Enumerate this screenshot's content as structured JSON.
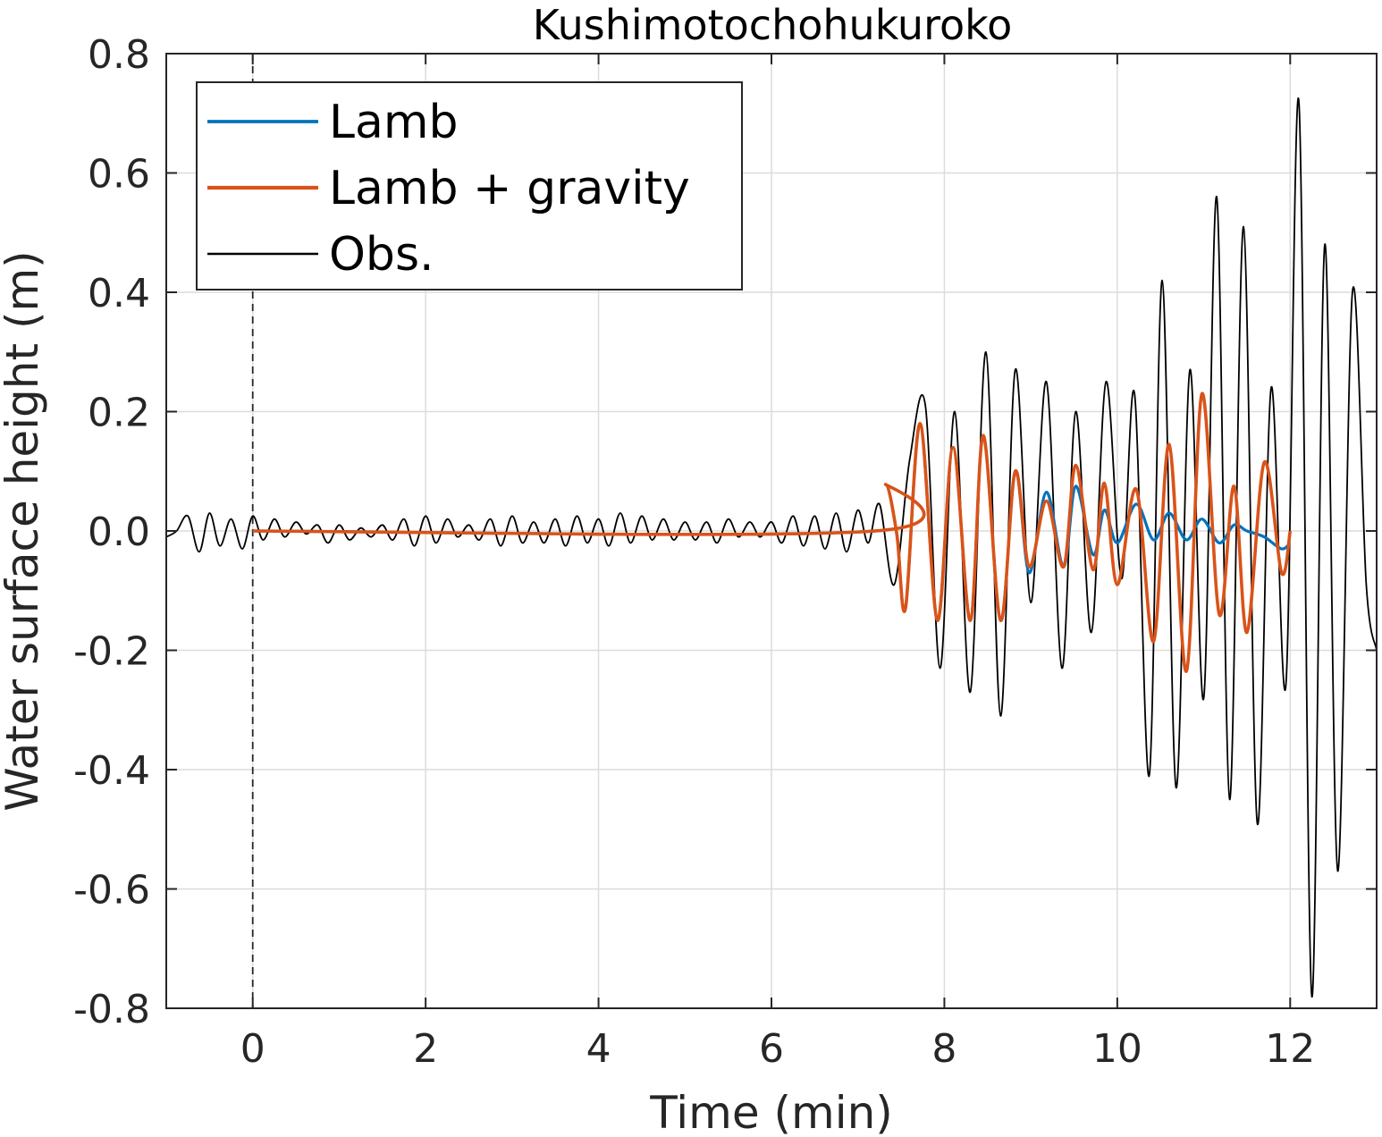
{
  "chart_data": {
    "type": "line",
    "title": "Kushimotochohukuroko",
    "xlabel": "Time (min)",
    "ylabel": "Water surface height (m)",
    "xlim": [
      -1,
      13
    ],
    "ylim": [
      -0.8,
      0.8
    ],
    "xticks": [
      0,
      2,
      4,
      6,
      8,
      10,
      12
    ],
    "xtick_labels": [
      "0",
      "2",
      "4",
      "6",
      "8",
      "10",
      "12"
    ],
    "yticks": [
      -0.8,
      -0.6,
      -0.4,
      -0.2,
      0.0,
      0.2,
      0.4,
      0.6,
      0.8
    ],
    "ytick_labels": [
      "-0.8",
      "-0.6",
      "-0.4",
      "-0.2",
      "0.0",
      "0.2",
      "0.4",
      "0.6",
      "0.8"
    ],
    "grid": true,
    "legend_position": "top-left",
    "vertical_reference_line": {
      "x": 0,
      "style": "dashed"
    },
    "series": [
      {
        "name": "Lamb",
        "color": "#0072BD",
        "x": [
          0,
          7.2,
          7.32,
          7.45,
          7.55,
          7.72,
          7.92,
          8.1,
          8.3,
          8.45,
          8.65,
          8.82,
          8.98,
          9.18,
          9.38,
          9.52,
          9.72,
          9.85,
          10.0,
          10.22,
          10.42,
          10.6,
          10.8,
          10.98,
          11.18,
          11.35,
          11.5,
          11.7,
          11.9,
          12.0
        ],
        "y": [
          0,
          0,
          0.078,
          -0.005,
          -0.13,
          0.18,
          -0.15,
          0.14,
          -0.15,
          0.16,
          -0.15,
          0.1,
          -0.07,
          0.065,
          -0.06,
          0.075,
          -0.04,
          0.035,
          -0.02,
          0.045,
          -0.015,
          0.03,
          -0.015,
          0.02,
          -0.02,
          0.01,
          0.0,
          -0.01,
          -0.03,
          -0.02
        ]
      },
      {
        "name": "Lamb + gravity",
        "color": "#D95319",
        "x": [
          0,
          7.2,
          7.32,
          7.45,
          7.55,
          7.72,
          7.92,
          8.1,
          8.3,
          8.45,
          8.65,
          8.82,
          8.98,
          9.18,
          9.38,
          9.52,
          9.72,
          9.85,
          10.0,
          10.22,
          10.42,
          10.6,
          10.8,
          10.98,
          11.18,
          11.35,
          11.5,
          11.7,
          11.9,
          12.0
        ],
        "y": [
          0,
          0,
          0.078,
          -0.005,
          -0.13,
          0.18,
          -0.15,
          0.14,
          -0.15,
          0.16,
          -0.15,
          0.1,
          -0.06,
          0.05,
          -0.06,
          0.11,
          -0.065,
          0.08,
          -0.09,
          0.07,
          -0.185,
          0.145,
          -0.235,
          0.23,
          -0.14,
          0.075,
          -0.17,
          0.115,
          -0.07,
          0.0
        ]
      },
      {
        "name": "Obs.",
        "color": "#000000",
        "x": [
          -1,
          -0.88,
          -0.75,
          -0.62,
          -0.5,
          -0.38,
          -0.25,
          -0.12,
          0.0,
          0.12,
          0.25,
          0.37,
          0.5,
          0.62,
          0.75,
          0.87,
          1.0,
          1.12,
          1.25,
          1.37,
          1.5,
          1.62,
          1.75,
          1.87,
          2.0,
          2.12,
          2.25,
          2.37,
          2.5,
          2.62,
          2.75,
          2.87,
          3.0,
          3.12,
          3.25,
          3.37,
          3.5,
          3.62,
          3.75,
          3.87,
          4.0,
          4.12,
          4.25,
          4.37,
          4.5,
          4.62,
          4.75,
          4.87,
          5.0,
          5.12,
          5.25,
          5.37,
          5.5,
          5.62,
          5.75,
          5.87,
          6.0,
          6.12,
          6.25,
          6.37,
          6.5,
          6.62,
          6.75,
          6.87,
          7.0,
          7.12,
          7.25,
          7.42,
          7.6,
          7.78,
          7.95,
          8.12,
          8.3,
          8.48,
          8.65,
          8.82,
          9.0,
          9.18,
          9.36,
          9.52,
          9.7,
          9.87,
          10.05,
          10.2,
          10.37,
          10.52,
          10.68,
          10.84,
          11.0,
          11.15,
          11.3,
          11.46,
          11.62,
          11.78,
          11.95,
          12.1,
          12.25,
          12.4,
          12.55,
          12.72,
          12.88,
          13.0
        ],
        "y": [
          -0.01,
          0.0,
          0.025,
          -0.035,
          0.03,
          -0.025,
          0.02,
          -0.03,
          0.025,
          -0.015,
          0.02,
          -0.01,
          0.015,
          -0.005,
          0.01,
          -0.02,
          0.01,
          -0.015,
          0.005,
          -0.01,
          0.01,
          -0.015,
          0.02,
          -0.025,
          0.025,
          -0.02,
          0.02,
          -0.01,
          0.01,
          -0.015,
          0.02,
          -0.025,
          0.025,
          -0.02,
          0.015,
          -0.02,
          0.02,
          -0.025,
          0.025,
          -0.02,
          0.02,
          -0.025,
          0.03,
          -0.02,
          0.025,
          -0.015,
          0.02,
          -0.015,
          0.015,
          -0.015,
          0.015,
          -0.02,
          0.02,
          -0.01,
          0.015,
          -0.01,
          0.015,
          -0.02,
          0.025,
          -0.025,
          0.025,
          -0.03,
          0.03,
          -0.035,
          0.035,
          -0.02,
          0.045,
          -0.09,
          0.12,
          0.21,
          -0.23,
          0.2,
          -0.27,
          0.3,
          -0.31,
          0.27,
          -0.12,
          0.25,
          -0.23,
          0.2,
          -0.17,
          0.25,
          -0.08,
          0.23,
          -0.41,
          0.42,
          -0.43,
          0.27,
          -0.28,
          0.56,
          -0.45,
          0.51,
          -0.49,
          0.24,
          -0.26,
          0.72,
          -0.78,
          0.48,
          -0.57,
          0.4,
          -0.09,
          -0.2
        ]
      }
    ]
  }
}
